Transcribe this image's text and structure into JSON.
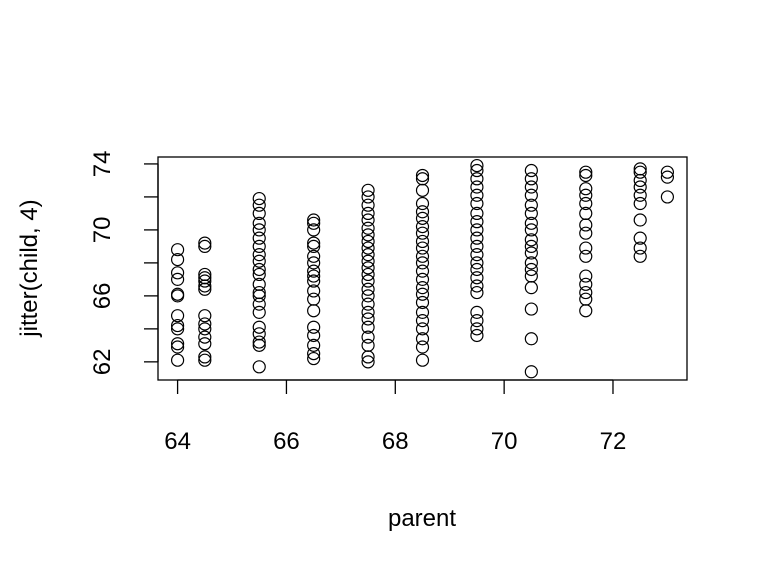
{
  "chart_data": {
    "type": "scatter",
    "xlabel": "parent",
    "ylabel": "jitter(child, 4)",
    "xlim": [
      63.64,
      73.36
    ],
    "ylim": [
      60.9,
      74.42
    ],
    "xticks": [
      64,
      66,
      68,
      70,
      72
    ],
    "yticks": [
      62,
      {
        "value": 64,
        "label": null
      },
      66,
      {
        "value": 68,
        "label": null
      },
      70,
      {
        "value": 72,
        "label": null
      },
      74
    ],
    "color": "#000000",
    "x": [
      64,
      64,
      64,
      64,
      64,
      64,
      64,
      64,
      64,
      64,
      64,
      64,
      64.5,
      64.5,
      64.5,
      64.5,
      64.5,
      64.5,
      64.5,
      64.5,
      64.5,
      64.5,
      64.5,
      64.5,
      64.5,
      64.5,
      65.5,
      65.5,
      65.5,
      65.5,
      65.5,
      65.5,
      65.5,
      65.5,
      65.5,
      65.5,
      65.5,
      65.5,
      65.5,
      65.5,
      65.5,
      65.5,
      65.5,
      65.5,
      65.5,
      65.5,
      65.5,
      66.5,
      66.5,
      66.5,
      66.5,
      66.5,
      66.5,
      66.5,
      66.5,
      66.5,
      66.5,
      66.5,
      66.5,
      66.5,
      66.5,
      66.5,
      66.5,
      66.5,
      66.5,
      67.5,
      67.5,
      67.5,
      67.5,
      67.5,
      67.5,
      67.5,
      67.5,
      67.5,
      67.5,
      67.5,
      67.5,
      67.5,
      67.5,
      67.5,
      67.5,
      67.5,
      67.5,
      67.5,
      67.5,
      67.5,
      67.5,
      67.5,
      67.5,
      68.5,
      68.5,
      68.5,
      68.5,
      68.5,
      68.5,
      68.5,
      68.5,
      68.5,
      68.5,
      68.5,
      68.5,
      68.5,
      68.5,
      68.5,
      68.5,
      68.5,
      68.5,
      68.5,
      68.5,
      68.5,
      68.5,
      68.5,
      69.5,
      69.5,
      69.5,
      69.5,
      69.5,
      69.5,
      69.5,
      69.5,
      69.5,
      69.5,
      69.5,
      69.5,
      69.5,
      69.5,
      69.5,
      69.5,
      69.5,
      69.5,
      69.5,
      69.5,
      69.5,
      70.5,
      70.5,
      70.5,
      70.5,
      70.5,
      70.5,
      70.5,
      70.5,
      70.5,
      70.5,
      70.5,
      70.5,
      70.5,
      70.5,
      70.5,
      70.5,
      70.5,
      70.5,
      71.5,
      71.5,
      71.5,
      71.5,
      71.5,
      71.5,
      71.5,
      71.5,
      71.5,
      71.5,
      71.5,
      71.5,
      71.5,
      71.5,
      71.5,
      72.5,
      72.5,
      72.5,
      72.5,
      72.5,
      72.5,
      72.5,
      72.5,
      72.5,
      72.5,
      73,
      73,
      73
    ],
    "y": [
      62.1,
      62.9,
      63.1,
      64.0,
      64.2,
      64.8,
      66.0,
      66.1,
      67.0,
      67.4,
      68.2,
      68.8,
      62.1,
      62.3,
      63.1,
      63.5,
      64.0,
      64.3,
      64.8,
      66.4,
      66.6,
      66.9,
      67.1,
      67.3,
      69.0,
      69.2,
      61.7,
      63.0,
      63.2,
      63.7,
      64.1,
      65.0,
      65.5,
      66.0,
      66.2,
      66.7,
      67.3,
      67.6,
      68.1,
      68.5,
      69.0,
      69.5,
      70.0,
      70.4,
      71.0,
      71.5,
      71.9,
      62.2,
      62.5,
      63.0,
      63.6,
      64.1,
      65.1,
      65.8,
      66.3,
      66.9,
      67.2,
      67.5,
      68.0,
      68.4,
      69.0,
      69.2,
      70.0,
      70.4,
      70.6,
      62.0,
      62.3,
      63.0,
      63.5,
      64.1,
      64.6,
      65.0,
      65.5,
      66.0,
      66.4,
      66.9,
      67.3,
      67.7,
      68.1,
      68.5,
      68.9,
      69.3,
      69.7,
      70.1,
      70.6,
      71.0,
      71.5,
      72.0,
      72.4,
      62.1,
      62.9,
      63.4,
      64.0,
      64.5,
      65.0,
      65.6,
      66.1,
      66.5,
      67.0,
      67.5,
      68.0,
      68.4,
      68.9,
      69.3,
      69.8,
      70.2,
      70.7,
      71.1,
      71.6,
      72.4,
      73.1,
      73.3,
      63.6,
      64.0,
      64.5,
      65.0,
      66.2,
      66.6,
      67.1,
      67.6,
      68.0,
      68.5,
      69.0,
      69.5,
      70.0,
      70.5,
      71.0,
      71.6,
      72.1,
      72.6,
      73.1,
      73.6,
      73.9,
      61.4,
      63.4,
      65.2,
      66.5,
      67.2,
      67.6,
      68.0,
      68.6,
      69.0,
      69.4,
      70.0,
      70.4,
      71.0,
      71.5,
      72.1,
      72.6,
      73.1,
      73.6,
      65.1,
      65.8,
      66.2,
      66.7,
      67.2,
      68.4,
      68.9,
      69.8,
      70.3,
      71.0,
      71.6,
      72.1,
      72.5,
      73.3,
      73.5,
      68.4,
      68.9,
      69.5,
      70.6,
      71.6,
      72.1,
      72.6,
      73.0,
      73.5,
      73.7,
      72.0,
      73.2,
      73.5
    ]
  }
}
